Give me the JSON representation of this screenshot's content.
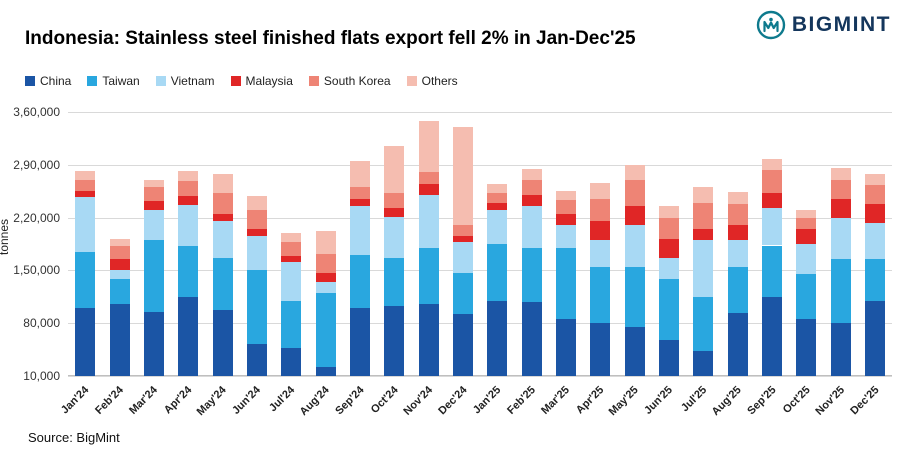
{
  "header": {
    "title": "Indonesia: Stainless steel finished flats export fell 2% in Jan-Dec'25",
    "brand": "BIGMINT",
    "brand_color": "#14365c",
    "logo_icon_color": "#0e7a8d"
  },
  "footer": {
    "source": "Source: BigMint"
  },
  "chart_data": {
    "type": "bar",
    "stacked": true,
    "title": "Indonesia: Stainless steel finished flats export fell 2% in Jan-Dec'25",
    "xlabel": "",
    "ylabel": "tonnes",
    "ylim": [
      10000,
      360000
    ],
    "grid": true,
    "legend_position": "top-left",
    "yticks": [
      {
        "value": 10000,
        "label": "10,000"
      },
      {
        "value": 80000,
        "label": "80,000"
      },
      {
        "value": 150000,
        "label": "1,50,000"
      },
      {
        "value": 220000,
        "label": "2,20,000"
      },
      {
        "value": 290000,
        "label": "2,90,000"
      },
      {
        "value": 360000,
        "label": "3,60,000"
      }
    ],
    "categories": [
      "Jan'24",
      "Feb'24",
      "Mar'24",
      "Apr'24",
      "May'24",
      "Jun'24",
      "Jul'24",
      "Aug'24",
      "Sep'24",
      "Oct'24",
      "Nov'24",
      "Dec'24",
      "Jan'25",
      "Feb'25",
      "Mar'25",
      "Apr'25",
      "May'25",
      "Jun'25",
      "Jul'25",
      "Aug'25",
      "Sep'25",
      "Oct'25",
      "Nov'25",
      "Dec'25"
    ],
    "series": [
      {
        "name": "China",
        "color": "#1b55a5",
        "values": [
          100000,
          105000,
          95000,
          115000,
          97000,
          53000,
          47000,
          22000,
          100000,
          103000,
          105000,
          92000,
          110000,
          108000,
          85000,
          80000,
          75000,
          58000,
          43000,
          93000,
          115000,
          85000,
          80000,
          110000
        ]
      },
      {
        "name": "Taiwan",
        "color": "#29a7df",
        "values": [
          75000,
          33000,
          95000,
          67000,
          70000,
          97000,
          62000,
          98000,
          70000,
          63000,
          75000,
          55000,
          75000,
          72000,
          95000,
          75000,
          80000,
          80000,
          72000,
          62000,
          68000,
          60000,
          85000,
          55000
        ]
      },
      {
        "name": "Vietnam",
        "color": "#a8d9f4",
        "values": [
          72000,
          12000,
          40000,
          55000,
          48000,
          45000,
          52000,
          15000,
          65000,
          55000,
          70000,
          40000,
          45000,
          55000,
          30000,
          35000,
          55000,
          28000,
          75000,
          35000,
          50000,
          40000,
          55000,
          48000
        ]
      },
      {
        "name": "Malaysia",
        "color": "#e02626",
        "values": [
          8000,
          15000,
          12000,
          12000,
          10000,
          10000,
          8000,
          12000,
          10000,
          12000,
          15000,
          8000,
          10000,
          15000,
          15000,
          25000,
          25000,
          25000,
          15000,
          20000,
          20000,
          20000,
          25000,
          25000
        ]
      },
      {
        "name": "South Korea",
        "color": "#ee8475",
        "values": [
          15000,
          18000,
          18000,
          20000,
          28000,
          25000,
          18000,
          25000,
          15000,
          20000,
          15000,
          15000,
          12000,
          20000,
          18000,
          30000,
          35000,
          28000,
          35000,
          28000,
          30000,
          15000,
          25000,
          25000
        ]
      },
      {
        "name": "Others",
        "color": "#f5bdb0",
        "values": [
          12000,
          9000,
          10000,
          13000,
          25000,
          18000,
          13000,
          30000,
          35000,
          62000,
          68000,
          130000,
          12000,
          15000,
          12000,
          21000,
          20000,
          16000,
          20000,
          16000,
          15000,
          10000,
          16000,
          15000
        ]
      }
    ]
  }
}
